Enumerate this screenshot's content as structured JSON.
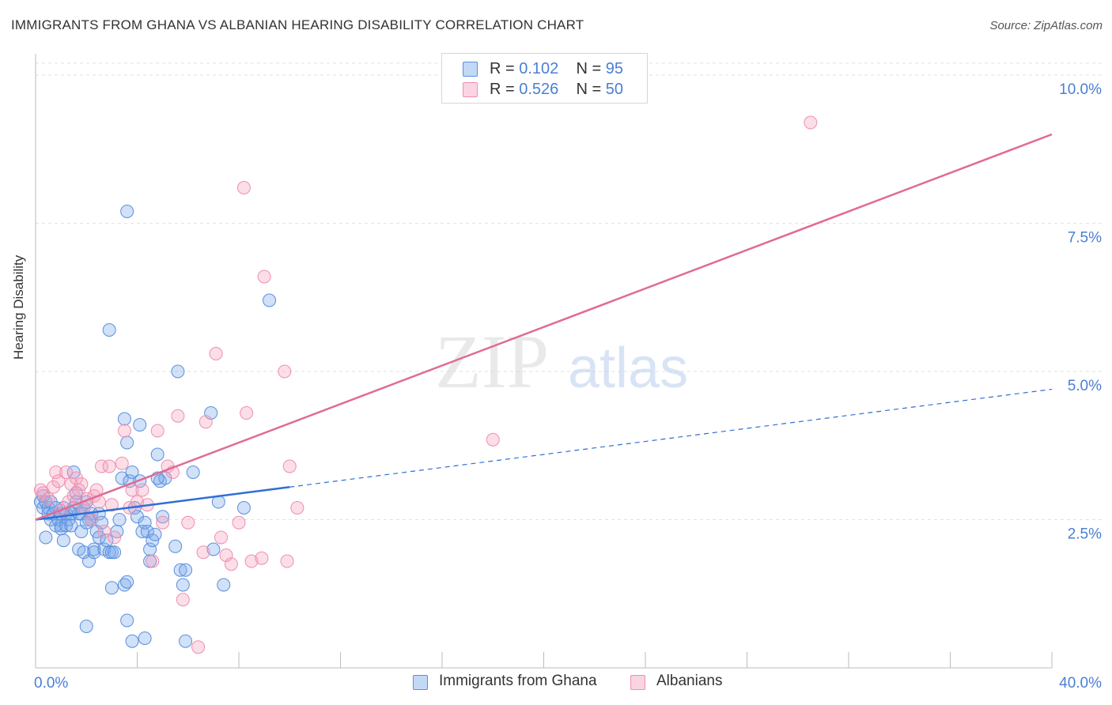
{
  "header": {
    "title": "IMMIGRANTS FROM GHANA VS ALBANIAN HEARING DISABILITY CORRELATION CHART",
    "source": "Source: ZipAtlas.com"
  },
  "watermark": {
    "part1": "ZIP",
    "part2": "atlas"
  },
  "legend": {
    "rows": [
      {
        "r_label": "R = ",
        "r_value": "0.102",
        "n_label": "N = ",
        "n_value": "95"
      },
      {
        "r_label": "R = ",
        "r_value": "0.526",
        "n_label": "N = ",
        "n_value": "50"
      }
    ]
  },
  "bottom_legend": {
    "series1": "Immigrants from Ghana",
    "series2": "Albanians"
  },
  "colors": {
    "ghana_fill": "rgba(120,170,235,0.35)",
    "ghana_stroke": "#5b8fde",
    "ghana_line": "#2f6fd6",
    "albanian_fill": "rgba(245,160,190,0.35)",
    "albanian_stroke": "#ee8fb0",
    "albanian_line": "#e06b95",
    "tick_label": "#4a7fd4",
    "grid": "#e2e2e2"
  },
  "chart_data": {
    "type": "scatter",
    "title": "IMMIGRANTS FROM GHANA VS ALBANIAN HEARING DISABILITY CORRELATION CHART",
    "xlabel": "",
    "ylabel": "Hearing Disability",
    "xlim": [
      0,
      40
    ],
    "ylim": [
      0,
      10.2
    ],
    "x_tick_labels": [
      "0.0%",
      "40.0%"
    ],
    "y_ticks": [
      2.5,
      5.0,
      7.5,
      10.0
    ],
    "y_tick_labels": [
      "2.5%",
      "5.0%",
      "7.5%",
      "10.0%"
    ],
    "grid": "horizontal dashed",
    "legend_position": "top-center",
    "series": [
      {
        "name": "Immigrants from Ghana",
        "r": 0.102,
        "n": 95,
        "trend": {
          "x": [
            0,
            10
          ],
          "y": [
            2.5,
            3.05
          ],
          "dashed_extension_to_x": 40,
          "dashed_y_at_end": 4.7
        },
        "points": [
          [
            0.2,
            2.8
          ],
          [
            0.3,
            2.9
          ],
          [
            0.3,
            2.7
          ],
          [
            0.4,
            2.8
          ],
          [
            0.5,
            2.7
          ],
          [
            0.5,
            2.6
          ],
          [
            0.6,
            2.5
          ],
          [
            0.6,
            2.8
          ],
          [
            0.7,
            2.6
          ],
          [
            0.8,
            2.7
          ],
          [
            0.9,
            2.5
          ],
          [
            1.0,
            2.6
          ],
          [
            1.0,
            2.4
          ],
          [
            1.1,
            2.7
          ],
          [
            1.2,
            2.6
          ],
          [
            1.3,
            2.5
          ],
          [
            1.4,
            2.6
          ],
          [
            1.5,
            2.7
          ],
          [
            1.6,
            2.8
          ],
          [
            1.7,
            2.6
          ],
          [
            1.8,
            2.6
          ],
          [
            1.9,
            2.7
          ],
          [
            2.0,
            2.8
          ],
          [
            2.1,
            2.5
          ],
          [
            2.2,
            2.6
          ],
          [
            0.4,
            2.2
          ],
          [
            0.8,
            2.4
          ],
          [
            1.0,
            2.35
          ],
          [
            1.1,
            2.15
          ],
          [
            1.2,
            2.4
          ],
          [
            1.4,
            2.4
          ],
          [
            1.5,
            3.3
          ],
          [
            1.6,
            2.95
          ],
          [
            1.7,
            2.0
          ],
          [
            1.8,
            2.3
          ],
          [
            1.9,
            1.95
          ],
          [
            2.0,
            2.45
          ],
          [
            2.1,
            1.8
          ],
          [
            2.2,
            2.5
          ],
          [
            2.3,
            2.0
          ],
          [
            2.3,
            1.95
          ],
          [
            2.4,
            2.3
          ],
          [
            2.5,
            2.6
          ],
          [
            2.5,
            2.2
          ],
          [
            2.6,
            2.45
          ],
          [
            2.7,
            2.0
          ],
          [
            2.8,
            2.15
          ],
          [
            2.9,
            1.95
          ],
          [
            3.0,
            1.95
          ],
          [
            3.1,
            1.95
          ],
          [
            3.2,
            2.3
          ],
          [
            3.3,
            2.5
          ],
          [
            3.4,
            3.2
          ],
          [
            3.5,
            4.2
          ],
          [
            3.6,
            3.8
          ],
          [
            3.7,
            3.15
          ],
          [
            3.8,
            3.3
          ],
          [
            3.9,
            2.7
          ],
          [
            4.0,
            2.55
          ],
          [
            4.1,
            3.15
          ],
          [
            4.2,
            2.3
          ],
          [
            4.3,
            2.45
          ],
          [
            4.4,
            2.3
          ],
          [
            4.5,
            2.0
          ],
          [
            4.6,
            2.15
          ],
          [
            4.7,
            2.25
          ],
          [
            4.8,
            3.6
          ],
          [
            4.9,
            3.15
          ],
          [
            5.0,
            2.55
          ],
          [
            5.1,
            3.2
          ],
          [
            3.5,
            1.4
          ],
          [
            3.6,
            1.45
          ],
          [
            3.0,
            1.35
          ],
          [
            4.5,
            1.8
          ],
          [
            5.5,
            2.05
          ],
          [
            5.7,
            1.65
          ],
          [
            5.8,
            1.4
          ],
          [
            5.9,
            1.65
          ],
          [
            2.0,
            0.7
          ],
          [
            3.6,
            0.8
          ],
          [
            3.8,
            0.45
          ],
          [
            4.3,
            0.5
          ],
          [
            5.9,
            0.45
          ],
          [
            2.9,
            5.7
          ],
          [
            3.6,
            7.7
          ],
          [
            4.1,
            4.1
          ],
          [
            4.8,
            3.2
          ],
          [
            5.6,
            5.0
          ],
          [
            6.2,
            3.3
          ],
          [
            6.9,
            4.3
          ],
          [
            7.2,
            2.8
          ],
          [
            7.0,
            2.0
          ],
          [
            7.4,
            1.4
          ],
          [
            8.2,
            2.7
          ],
          [
            9.2,
            6.2
          ]
        ]
      },
      {
        "name": "Albanians",
        "r": 0.526,
        "n": 50,
        "trend": {
          "x": [
            0,
            40
          ],
          "y": [
            2.5,
            9.0
          ]
        },
        "points": [
          [
            0.2,
            3.0
          ],
          [
            0.3,
            2.95
          ],
          [
            0.5,
            2.85
          ],
          [
            0.7,
            3.05
          ],
          [
            0.8,
            3.3
          ],
          [
            0.9,
            3.15
          ],
          [
            1.0,
            2.65
          ],
          [
            1.2,
            3.3
          ],
          [
            1.3,
            2.8
          ],
          [
            1.4,
            3.1
          ],
          [
            1.5,
            2.9
          ],
          [
            1.6,
            3.2
          ],
          [
            1.7,
            3.0
          ],
          [
            1.8,
            3.1
          ],
          [
            1.9,
            2.7
          ],
          [
            2.0,
            2.85
          ],
          [
            2.2,
            2.5
          ],
          [
            2.3,
            2.9
          ],
          [
            2.4,
            3.0
          ],
          [
            2.5,
            2.8
          ],
          [
            2.6,
            3.4
          ],
          [
            2.7,
            2.3
          ],
          [
            2.9,
            3.4
          ],
          [
            3.0,
            2.75
          ],
          [
            3.1,
            2.2
          ],
          [
            3.4,
            3.45
          ],
          [
            3.5,
            4.0
          ],
          [
            3.7,
            2.7
          ],
          [
            3.8,
            3.0
          ],
          [
            4.0,
            2.8
          ],
          [
            4.2,
            3.0
          ],
          [
            4.4,
            2.75
          ],
          [
            4.6,
            1.8
          ],
          [
            4.8,
            4.0
          ],
          [
            5.0,
            2.45
          ],
          [
            5.2,
            3.4
          ],
          [
            5.4,
            3.3
          ],
          [
            5.6,
            4.25
          ],
          [
            5.8,
            1.15
          ],
          [
            6.0,
            2.45
          ],
          [
            6.4,
            0.35
          ],
          [
            6.7,
            4.15
          ],
          [
            7.1,
            5.3
          ],
          [
            7.3,
            2.2
          ],
          [
            7.5,
            1.9
          ],
          [
            8.0,
            2.45
          ],
          [
            7.7,
            1.75
          ],
          [
            8.2,
            8.1
          ],
          [
            9.0,
            6.6
          ],
          [
            9.8,
            5.0
          ]
        ]
      },
      {
        "name": "Albanians (outliers)",
        "points": [
          [
            6.6,
            1.95
          ],
          [
            8.3,
            4.3
          ],
          [
            8.5,
            1.8
          ],
          [
            8.9,
            1.85
          ],
          [
            9.9,
            1.8
          ],
          [
            10.0,
            3.4
          ],
          [
            10.3,
            2.7
          ],
          [
            18.0,
            3.85
          ],
          [
            30.5,
            9.2
          ]
        ]
      }
    ]
  }
}
